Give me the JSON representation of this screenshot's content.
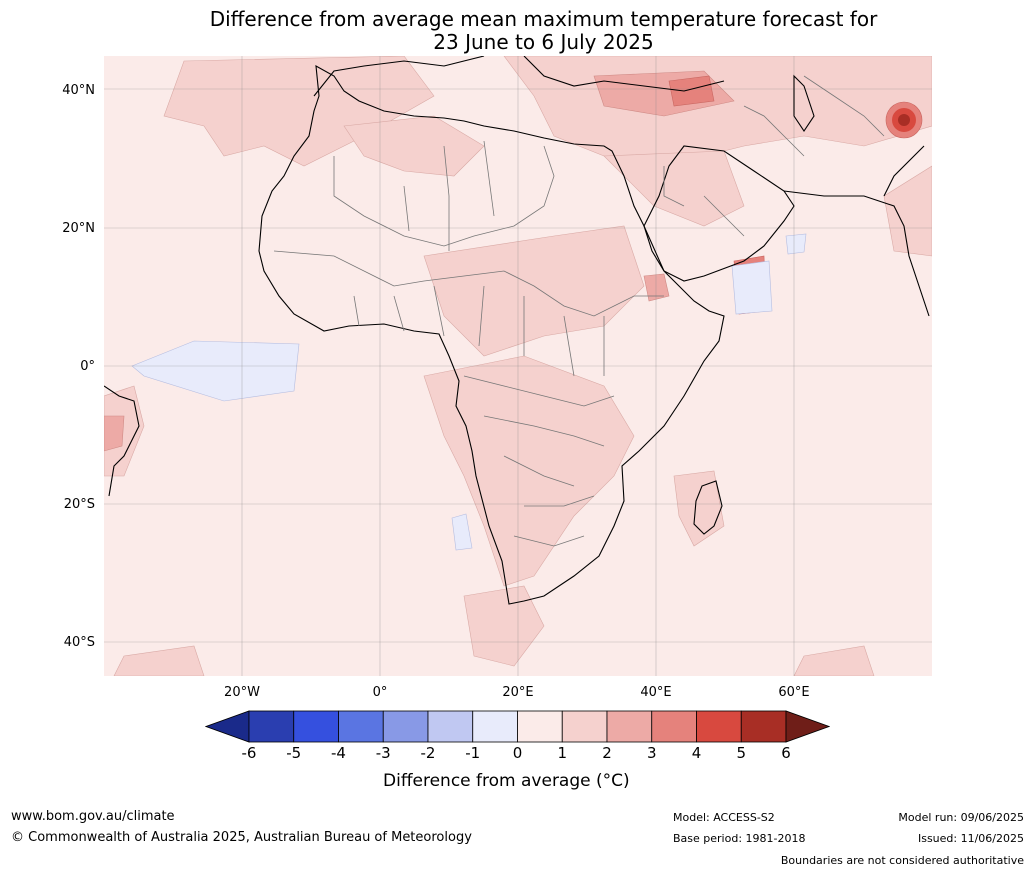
{
  "title": {
    "line1": "Difference from average mean maximum temperature forecast for",
    "line2": "23 June to 6 July 2025"
  },
  "axes": {
    "y_ticks": [
      "40°N",
      "20°N",
      "0°",
      "20°S",
      "40°S"
    ],
    "x_ticks": [
      "20°W",
      "0°",
      "20°E",
      "40°E",
      "60°E"
    ]
  },
  "colorbar": {
    "ticks": [
      "-6",
      "-5",
      "-4",
      "-3",
      "-2",
      "-1",
      "0",
      "1",
      "2",
      "3",
      "4",
      "5",
      "6"
    ],
    "colors": [
      "#1a2a8a",
      "#2a3eb0",
      "#3550df",
      "#5a75e2",
      "#8899e6",
      "#c0c8f2",
      "#e8ebfb",
      "#fbebe9",
      "#f5d1ce",
      "#edaaa6",
      "#e5827c",
      "#d8493f",
      "#a82e25",
      "#6f1e18"
    ],
    "label": "Difference from average (°C)"
  },
  "footer": {
    "url": "www.bom.gov.au/climate",
    "copyright": "© Commonwealth of Australia 2025, Australian Bureau of Meteorology",
    "model": "Model: ACCESS-S2",
    "base_period": "Base period: 1981-2018",
    "model_run": "Model run: 09/06/2025",
    "issued": "Issued: 11/06/2025",
    "disclaimer": "Boundaries are not considered authoritative"
  }
}
